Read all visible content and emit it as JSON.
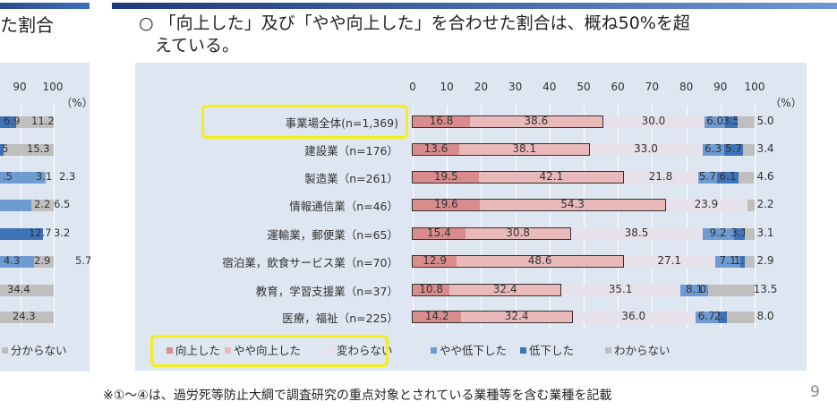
{
  "left_panel": {
    "title_fragment": "た割合",
    "ticks": [
      "90",
      "100"
    ],
    "unit": "（%）",
    "rows": [
      [
        "6.9",
        "11.2"
      ],
      [
        "5",
        "15.3"
      ],
      [
        ".5",
        "3.1",
        "2.3"
      ],
      [
        "2.2",
        "6.5"
      ],
      [
        "12.7",
        "3.2"
      ],
      [
        "4.3",
        "2.9",
        "5.7"
      ],
      [
        "34.4"
      ],
      [
        "24.3"
      ]
    ],
    "legend": "分からない"
  },
  "slide": {
    "title_line1": "○ 「向上した」及び「やや向上した」を合わせた割合は、概ね50%を超",
    "title_line2": "えている。",
    "note": "※①～④は、過労死等防止大綱で調査研究の重点対象とされている業種等を含む業種を記載",
    "page_number": "9"
  },
  "chart_data": {
    "type": "bar",
    "orientation": "horizontal",
    "stacked": true,
    "unit": "（%）",
    "xlim": [
      0,
      100
    ],
    "ticks": [
      "0",
      "10",
      "20",
      "30",
      "40",
      "50",
      "60",
      "70",
      "80",
      "90",
      "100"
    ],
    "categories": [
      "事業場全体(n=1,369)",
      "建設業（n=176）",
      "製造業（n=261）",
      "情報通信業（n=46）",
      "運輸業，郵便業（n=65）",
      "宿泊業，飲食サービス業（n=70）",
      "教育，学習支援業（n=37）",
      "医療，福祉（n=225）"
    ],
    "series": [
      {
        "name": "向上した",
        "color": "#d98c8c",
        "values": [
          16.8,
          13.6,
          19.5,
          19.6,
          15.4,
          12.9,
          10.8,
          14.2
        ]
      },
      {
        "name": "やや向上した",
        "color": "#eab9b9",
        "values": [
          38.6,
          38.1,
          42.1,
          54.3,
          30.8,
          48.6,
          32.4,
          32.4
        ]
      },
      {
        "name": "変わらない",
        "color": "#e6e1ea",
        "values": [
          30.0,
          33.0,
          21.8,
          23.9,
          38.5,
          27.1,
          35.1,
          36.0
        ]
      },
      {
        "name": "やや低下した",
        "color": "#6f9bd3",
        "values": [
          6.0,
          6.3,
          5.7,
          0,
          9.2,
          7.1,
          8.1,
          6.7
        ]
      },
      {
        "name": "低下した",
        "color": "#3e73b8",
        "values": [
          3.5,
          5.7,
          6.1,
          0,
          3.1,
          1.4,
          0.0,
          2.7
        ]
      },
      {
        "name": "わからない",
        "color": "#bfbfbf",
        "values": [
          5.0,
          3.4,
          4.6,
          2.2,
          3.1,
          2.9,
          13.5,
          8.0
        ]
      }
    ],
    "legend_position": "bottom",
    "grid": true
  }
}
